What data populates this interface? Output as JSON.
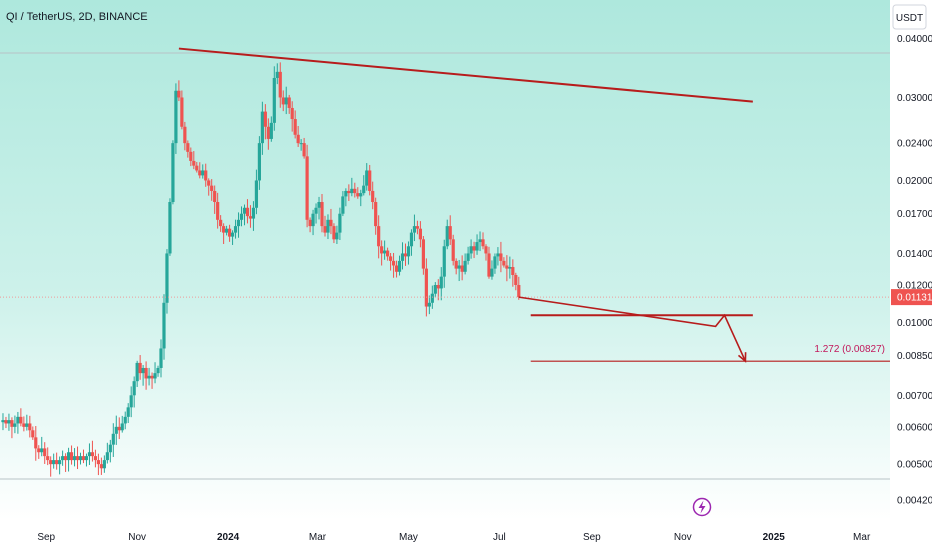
{
  "header": {
    "title": "QI / TetherUS, 2D, BINANCE",
    "currency_button": "USDT"
  },
  "colors": {
    "up": "#26a69a",
    "down": "#ef5350",
    "trendline": "#b71c1c",
    "price_label_bg": "#ef5350",
    "background_top": "#aee8dd",
    "background_bottom": "#ffffff"
  },
  "current_price": {
    "label": "0.01131",
    "value": 0.01131
  },
  "projection": {
    "label": "1.272 (0.00827)",
    "value": 0.00827
  },
  "support_level": 0.01035,
  "chart_data": {
    "type": "candlestick",
    "title": "QI / TetherUS, 2D, BINANCE",
    "y_scale": "log",
    "ylim": [
      0.0039,
      0.046
    ],
    "xlim": [
      "2023-08-01",
      "2025-03-20"
    ],
    "grid": false,
    "y_ticks": [
      0.0042,
      0.005,
      0.006,
      0.007,
      0.0085,
      0.01,
      0.012,
      0.014,
      0.017,
      0.02,
      0.024,
      0.03,
      0.04
    ],
    "y_tick_labels": [
      "0.00420",
      "0.00500",
      "0.00600",
      "0.00700",
      "0.00850",
      "0.01000",
      "0.01200",
      "0.01400",
      "0.01700",
      "0.02000",
      "0.02400",
      "0.03000",
      "0.04000"
    ],
    "x_ticks": [
      {
        "label": "Sep",
        "date": "2023-09-01"
      },
      {
        "label": "Nov",
        "date": "2023-11-01"
      },
      {
        "label": "2024",
        "date": "2024-01-01"
      },
      {
        "label": "Mar",
        "date": "2024-03-01"
      },
      {
        "label": "May",
        "date": "2024-05-01"
      },
      {
        "label": "Jul",
        "date": "2024-07-01"
      },
      {
        "label": "Sep",
        "date": "2024-09-01"
      },
      {
        "label": "Nov",
        "date": "2024-11-01"
      },
      {
        "label": "2025",
        "date": "2025-01-01"
      },
      {
        "label": "Mar",
        "date": "2025-03-01"
      }
    ],
    "start_date": "2023-08-03",
    "step_days": 2,
    "closes": [
      0.0062,
      0.0061,
      0.0062,
      0.006,
      0.0061,
      0.0063,
      0.0061,
      0.006,
      0.0061,
      0.0059,
      0.0057,
      0.0054,
      0.0053,
      0.0054,
      0.0052,
      0.0051,
      0.005,
      0.0051,
      0.005,
      0.0051,
      0.0052,
      0.0051,
      0.0053,
      0.0051,
      0.0052,
      0.0051,
      0.0052,
      0.0051,
      0.0052,
      0.0053,
      0.0052,
      0.0051,
      0.005,
      0.0049,
      0.0051,
      0.0053,
      0.0055,
      0.0058,
      0.006,
      0.0059,
      0.0061,
      0.0063,
      0.0066,
      0.007,
      0.0075,
      0.0082,
      0.0078,
      0.008,
      0.0076,
      0.0077,
      0.0076,
      0.0078,
      0.008,
      0.0088,
      0.011,
      0.014,
      0.018,
      0.024,
      0.031,
      0.03,
      0.026,
      0.024,
      0.023,
      0.022,
      0.0215,
      0.021,
      0.0205,
      0.021,
      0.02,
      0.0195,
      0.019,
      0.018,
      0.0165,
      0.016,
      0.0155,
      0.0158,
      0.0152,
      0.0155,
      0.016,
      0.0165,
      0.017,
      0.0175,
      0.0168,
      0.0166,
      0.0175,
      0.02,
      0.024,
      0.028,
      0.026,
      0.0245,
      0.0265,
      0.033,
      0.034,
      0.03,
      0.029,
      0.03,
      0.0285,
      0.027,
      0.025,
      0.024,
      0.024,
      0.0225,
      0.0165,
      0.016,
      0.017,
      0.0175,
      0.018,
      0.016,
      0.0155,
      0.0165,
      0.016,
      0.015,
      0.0155,
      0.017,
      0.0185,
      0.019,
      0.0188,
      0.0192,
      0.0188,
      0.0185,
      0.0188,
      0.0195,
      0.021,
      0.019,
      0.018,
      0.016,
      0.0145,
      0.014,
      0.0142,
      0.0138,
      0.0135,
      0.0132,
      0.0128,
      0.0135,
      0.014,
      0.0138,
      0.0145,
      0.0155,
      0.016,
      0.0158,
      0.015,
      0.013,
      0.0108,
      0.011,
      0.0115,
      0.012,
      0.0118,
      0.0125,
      0.0145,
      0.016,
      0.015,
      0.0135,
      0.013,
      0.0132,
      0.0128,
      0.0135,
      0.014,
      0.0145,
      0.0142,
      0.0148,
      0.015,
      0.0145,
      0.014,
      0.0125,
      0.013,
      0.0138,
      0.014,
      0.0135,
      0.0132,
      0.013,
      0.0131,
      0.0126,
      0.012,
      0.01131
    ],
    "trendline": {
      "x1": "2023-11-29",
      "y1": 0.0381,
      "x2": "2024-12-18",
      "y2": 0.0294
    },
    "annotations": [
      {
        "type": "hline",
        "y": 0.01035,
        "x1": "2024-07-22",
        "x2": "2024-12-18"
      },
      {
        "type": "hline",
        "y": 0.00827,
        "x1": "2024-07-22",
        "x2": "2025-03-20",
        "label": "1.272 (0.00827)"
      }
    ]
  }
}
